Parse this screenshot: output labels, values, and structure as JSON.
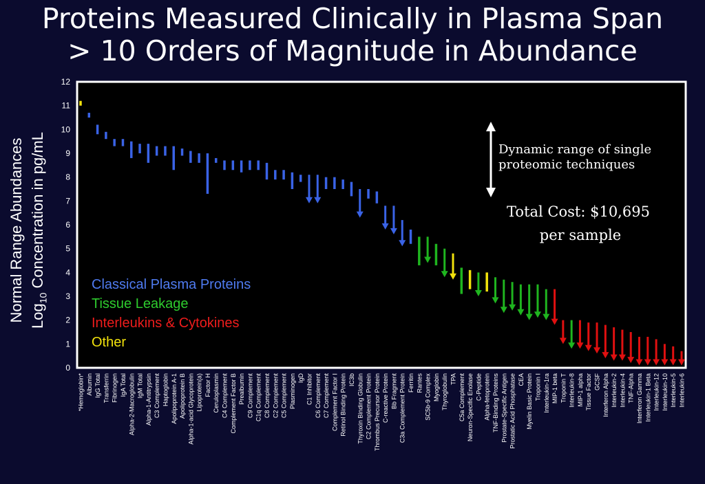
{
  "title": {
    "line1": "Proteins Measured Clinically in Plasma Span",
    "line2": "> 10 Orders of Magnitude in Abundance"
  },
  "ylabel": {
    "line1": "Normal Range Abundances",
    "line2_prefix": "Log",
    "line2_sub": "10",
    "line2_suffix": " Concentration in pg/mL"
  },
  "annotations": {
    "dynamic_range_line1": "Dynamic range of single",
    "dynamic_range_line2": "proteomic techniques",
    "cost_line1": "Total Cost: $10,695",
    "cost_line2": "per sample"
  },
  "colors": {
    "background": "#0b0b2e",
    "plot_background": "#000000",
    "blue": "#3a63e6",
    "green": "#1fb51f",
    "red": "#e01010",
    "yellow": "#f2e20c",
    "legend_blue": "#4f7bf0",
    "legend_green": "#2ecc2e",
    "legend_red": "#ee1c1c",
    "legend_yellow": "#f2e20c",
    "text": "#ffffff"
  },
  "chart_data": {
    "type": "range-bar",
    "ylim": [
      0,
      12
    ],
    "yticks": [
      0,
      1,
      2,
      3,
      4,
      5,
      6,
      7,
      8,
      9,
      10,
      11,
      12
    ],
    "grid": false,
    "legend": [
      {
        "label": "Classical Plasma Proteins",
        "color": "blue"
      },
      {
        "label": "Tissue Leakage",
        "color": "green"
      },
      {
        "label": "Interleukins & Cytokines",
        "color": "red"
      },
      {
        "label": "Other",
        "color": "yellow"
      }
    ],
    "proteins": [
      {
        "label": "*Hemoglobin*",
        "color": "yellow",
        "hi": 11.2,
        "lo": 11.0,
        "arrow": false
      },
      {
        "label": "Albumin",
        "color": "blue",
        "hi": 10.7,
        "lo": 10.5,
        "arrow": false
      },
      {
        "label": "IgG Total",
        "color": "blue",
        "hi": 10.2,
        "lo": 9.8,
        "arrow": false
      },
      {
        "label": "Transferrin",
        "color": "blue",
        "hi": 9.9,
        "lo": 9.6,
        "arrow": false
      },
      {
        "label": "Fibrinogen",
        "color": "blue",
        "hi": 9.6,
        "lo": 9.3,
        "arrow": false
      },
      {
        "label": "IgA Total",
        "color": "blue",
        "hi": 9.6,
        "lo": 9.3,
        "arrow": false
      },
      {
        "label": "Alpha-2-Macroglobulin",
        "color": "blue",
        "hi": 9.5,
        "lo": 8.8,
        "arrow": false
      },
      {
        "label": "IgM Total",
        "color": "blue",
        "hi": 9.4,
        "lo": 9.0,
        "arrow": false
      },
      {
        "label": "Alpha-1-Antitrypsin",
        "color": "blue",
        "hi": 9.4,
        "lo": 8.6,
        "arrow": false
      },
      {
        "label": "C3 Complement",
        "color": "blue",
        "hi": 9.3,
        "lo": 8.9,
        "arrow": false
      },
      {
        "label": "Haptoglobin",
        "color": "blue",
        "hi": 9.3,
        "lo": 8.9,
        "arrow": false
      },
      {
        "label": "Apolipoprotein A-1",
        "color": "blue",
        "hi": 9.3,
        "lo": 8.3,
        "arrow": false
      },
      {
        "label": "Apolipoprotein B",
        "color": "blue",
        "hi": 9.2,
        "lo": 8.9,
        "arrow": false
      },
      {
        "label": "Alpha-1-acid Glycoprotein",
        "color": "blue",
        "hi": 9.1,
        "lo": 8.6,
        "arrow": false
      },
      {
        "label": "Lipoprotein(a)",
        "color": "blue",
        "hi": 9.0,
        "lo": 8.6,
        "arrow": false
      },
      {
        "label": "Factor H",
        "color": "blue",
        "hi": 9.0,
        "lo": 7.3,
        "arrow": false
      },
      {
        "label": "Ceruloplasmin",
        "color": "blue",
        "hi": 8.8,
        "lo": 8.6,
        "arrow": false
      },
      {
        "label": "C4 Complement",
        "color": "blue",
        "hi": 8.7,
        "lo": 8.3,
        "arrow": false
      },
      {
        "label": "Complement Factor B",
        "color": "blue",
        "hi": 8.7,
        "lo": 8.3,
        "arrow": false
      },
      {
        "label": "Prealbumin",
        "color": "blue",
        "hi": 8.7,
        "lo": 8.2,
        "arrow": false
      },
      {
        "label": "C9 Complement",
        "color": "blue",
        "hi": 8.7,
        "lo": 8.3,
        "arrow": false
      },
      {
        "label": "C1q Complement",
        "color": "blue",
        "hi": 8.7,
        "lo": 8.3,
        "arrow": false
      },
      {
        "label": "C8 Complement",
        "color": "blue",
        "hi": 8.6,
        "lo": 7.9,
        "arrow": false
      },
      {
        "label": "C2 Complement",
        "color": "blue",
        "hi": 8.3,
        "lo": 7.9,
        "arrow": false
      },
      {
        "label": "C5 Complement",
        "color": "blue",
        "hi": 8.3,
        "lo": 7.9,
        "arrow": false
      },
      {
        "label": "Plasminogen",
        "color": "blue",
        "hi": 8.2,
        "lo": 7.5,
        "arrow": false
      },
      {
        "label": "IgD",
        "color": "blue",
        "hi": 8.1,
        "lo": 7.8,
        "arrow": false
      },
      {
        "label": "C1 Inhibitor",
        "color": "blue",
        "hi": 8.1,
        "lo": 6.9,
        "arrow": true
      },
      {
        "label": "C6 Complement",
        "color": "blue",
        "hi": 8.1,
        "lo": 6.9,
        "arrow": true
      },
      {
        "label": "C7 Complement",
        "color": "blue",
        "hi": 8.0,
        "lo": 7.5,
        "arrow": false
      },
      {
        "label": "Complement Factor I",
        "color": "blue",
        "hi": 8.0,
        "lo": 7.5,
        "arrow": false
      },
      {
        "label": "Retinol Binding Protein",
        "color": "blue",
        "hi": 7.9,
        "lo": 7.5,
        "arrow": false
      },
      {
        "label": "IC3b",
        "color": "blue",
        "hi": 7.8,
        "lo": 7.2,
        "arrow": false
      },
      {
        "label": "Thyroxin Binding Globulin",
        "color": "blue",
        "hi": 7.5,
        "lo": 6.3,
        "arrow": true
      },
      {
        "label": "C2 Complement Protein",
        "color": "blue",
        "hi": 7.5,
        "lo": 7.1,
        "arrow": false
      },
      {
        "label": "Thrombus Precursor Protein",
        "color": "blue",
        "hi": 7.4,
        "lo": 6.9,
        "arrow": false
      },
      {
        "label": "C-reactive Protein",
        "color": "blue",
        "hi": 6.8,
        "lo": 5.8,
        "arrow": true
      },
      {
        "label": "Bb Fragment",
        "color": "blue",
        "hi": 6.8,
        "lo": 5.6,
        "arrow": true
      },
      {
        "label": "C3a Complement Protein",
        "color": "blue",
        "hi": 6.2,
        "lo": 5.1,
        "arrow": true
      },
      {
        "label": "Ferritin",
        "color": "blue",
        "hi": 5.8,
        "lo": 5.2,
        "arrow": false
      },
      {
        "label": "Rantes",
        "color": "green",
        "hi": 5.5,
        "lo": 4.3,
        "arrow": false
      },
      {
        "label": "SC5b-9 Complex",
        "color": "green",
        "hi": 5.5,
        "lo": 4.4,
        "arrow": true
      },
      {
        "label": "Myoglobin",
        "color": "green",
        "hi": 5.2,
        "lo": 4.3,
        "arrow": false
      },
      {
        "label": "Thyroglobulin",
        "color": "green",
        "hi": 5.0,
        "lo": 3.8,
        "arrow": true
      },
      {
        "label": "TPA",
        "color": "yellow",
        "hi": 4.8,
        "lo": 3.7,
        "arrow": true
      },
      {
        "label": "C5a Complement",
        "color": "green",
        "hi": 4.2,
        "lo": 3.1,
        "arrow": false
      },
      {
        "label": "Neuron-Specific Enolase",
        "color": "yellow",
        "hi": 4.1,
        "lo": 3.3,
        "arrow": false
      },
      {
        "label": "C-Peptide",
        "color": "green",
        "hi": 4.0,
        "lo": 3.0,
        "arrow": true
      },
      {
        "label": "Alpha-fetoprotein",
        "color": "yellow",
        "hi": 4.0,
        "lo": 3.2,
        "arrow": false
      },
      {
        "label": "TNF-Binding Proteins",
        "color": "green",
        "hi": 3.8,
        "lo": 2.7,
        "arrow": true
      },
      {
        "label": "Prostate-Specific Antigen",
        "color": "green",
        "hi": 3.7,
        "lo": 2.3,
        "arrow": true
      },
      {
        "label": "Prostatic Acid Phosphatase",
        "color": "green",
        "hi": 3.6,
        "lo": 2.4,
        "arrow": true
      },
      {
        "label": "CEA",
        "color": "green",
        "hi": 3.5,
        "lo": 2.2,
        "arrow": true
      },
      {
        "label": "Myelin Basic Protein",
        "color": "green",
        "hi": 3.5,
        "lo": 2.0,
        "arrow": true
      },
      {
        "label": "Troponin I",
        "color": "green",
        "hi": 3.5,
        "lo": 2.1,
        "arrow": true
      },
      {
        "label": "Interleukin-1ra",
        "color": "green",
        "hi": 3.3,
        "lo": 2.0,
        "arrow": true
      },
      {
        "label": "MIP-1 beta",
        "color": "red",
        "hi": 3.3,
        "lo": 1.8,
        "arrow": true
      },
      {
        "label": "Troponin T",
        "color": "red",
        "hi": 2.0,
        "lo": 1.0,
        "arrow": true
      },
      {
        "label": "Interleukin-8",
        "color": "green",
        "hi": 2.0,
        "lo": 0.8,
        "arrow": true
      },
      {
        "label": "MIP-1 alpha",
        "color": "red",
        "hi": 2.0,
        "lo": 0.8,
        "arrow": true
      },
      {
        "label": "Tissue Factor",
        "color": "red",
        "hi": 1.9,
        "lo": 0.7,
        "arrow": true
      },
      {
        "label": "GCSF",
        "color": "red",
        "hi": 1.9,
        "lo": 0.6,
        "arrow": true
      },
      {
        "label": "Interferon Alpha",
        "color": "red",
        "hi": 1.8,
        "lo": 0.4,
        "arrow": true
      },
      {
        "label": "Interleukin-2",
        "color": "red",
        "hi": 1.7,
        "lo": 0.3,
        "arrow": true
      },
      {
        "label": "Interleukin-4",
        "color": "red",
        "hi": 1.6,
        "lo": 0.3,
        "arrow": true
      },
      {
        "label": "TNF-Alpha",
        "color": "red",
        "hi": 1.5,
        "lo": 0.2,
        "arrow": true
      },
      {
        "label": "Interferon Gamma",
        "color": "red",
        "hi": 1.3,
        "lo": 0.1,
        "arrow": true
      },
      {
        "label": "Interleukin-1 Beta",
        "color": "red",
        "hi": 1.3,
        "lo": 0.1,
        "arrow": true
      },
      {
        "label": "Interleukin-12",
        "color": "red",
        "hi": 1.2,
        "lo": 0.1,
        "arrow": true
      },
      {
        "label": "Interleukin-10",
        "color": "red",
        "hi": 1.0,
        "lo": 0.1,
        "arrow": true
      },
      {
        "label": "Interleukin-5",
        "color": "red",
        "hi": 0.9,
        "lo": 0.1,
        "arrow": true
      },
      {
        "label": "Interleukin-6",
        "color": "red",
        "hi": 0.7,
        "lo": 0.1,
        "arrow": true
      }
    ]
  }
}
